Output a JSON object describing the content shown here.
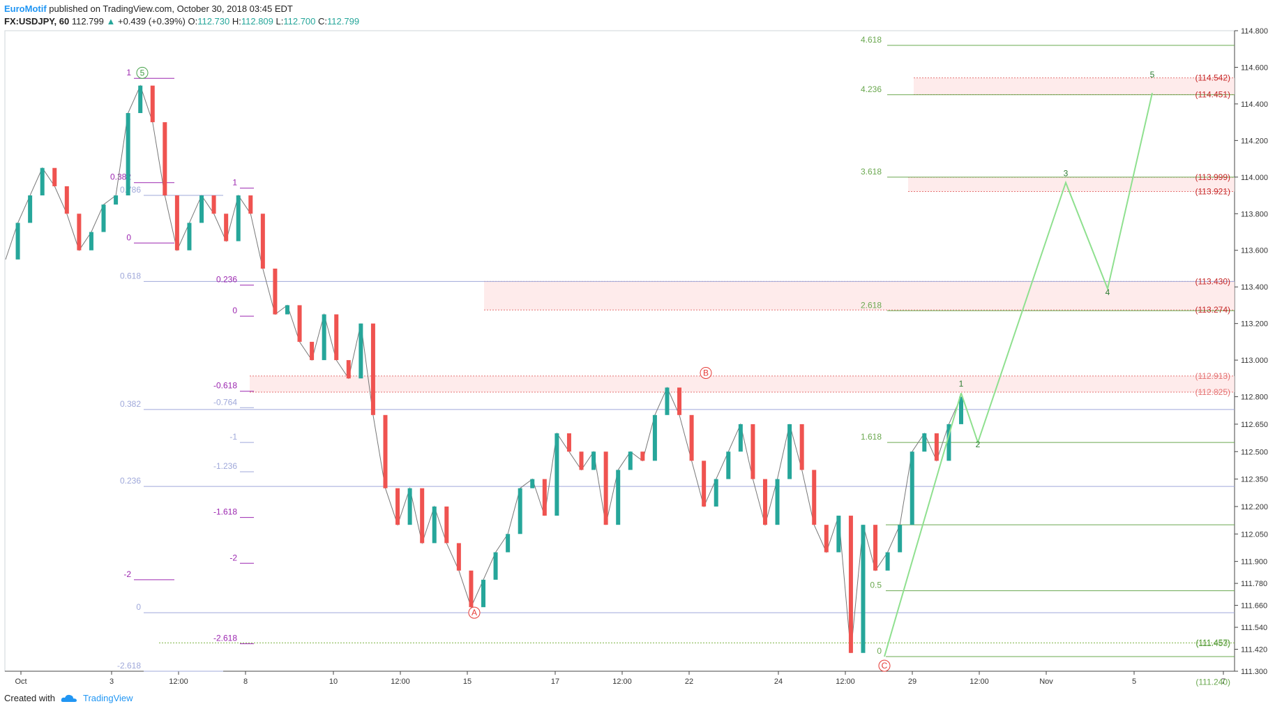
{
  "header": {
    "author": "EuroMotif",
    "published": "published on TradingView.com, October 30, 2018 03:45 EDT",
    "symbol": "FX:USDJPY, 60",
    "last": "112.799",
    "change_arrow": "▲",
    "change": "+0.439 (+0.39%)",
    "open_label": "O:",
    "open": "112.730",
    "high_label": "H:",
    "high": "112.809",
    "low_label": "L:",
    "low": "112.700",
    "close_label": "C:",
    "close": "112.799"
  },
  "footer": {
    "created_with": "Created with",
    "brand": "TradingView",
    "brand_icon": "cloud-logo-icon"
  },
  "colors": {
    "bull": "#26a69a",
    "bear": "#ef5350",
    "fib_green": "#6aa84f",
    "fib_purple": "#9c27b0",
    "fib_grey": "#9fa8da",
    "zone_red": "#fde4e4",
    "label_red": "#c62828",
    "projection": "#8fe08f"
  },
  "chart_data": {
    "type": "line",
    "title": "",
    "xlabel": "",
    "ylabel": "",
    "ylim": [
      111.3,
      114.8
    ],
    "grid": false,
    "y_ticks": [
      "114.800",
      "114.600",
      "114.400",
      "114.200",
      "114.000",
      "113.800",
      "113.600",
      "113.400",
      "113.200",
      "113.000",
      "112.800",
      "112.650",
      "112.500",
      "112.350",
      "112.200",
      "112.050",
      "111.900",
      "111.780",
      "111.660",
      "111.540",
      "111.420",
      "111.300"
    ],
    "x_ticks": [
      "Oct",
      "3",
      "12:00",
      "8",
      "10",
      "12:00",
      "15",
      "17",
      "12:00",
      "22",
      "24",
      "12:00",
      "29",
      "12:00",
      "Nov",
      "5",
      "7"
    ],
    "series": [
      {
        "values": [
          113.55,
          113.75,
          113.9,
          114.05,
          113.95,
          113.8,
          113.6,
          113.7,
          113.85,
          113.9,
          114.35,
          114.5,
          114.3,
          113.9,
          113.6,
          113.75,
          113.9,
          113.8,
          113.65,
          113.9,
          113.8,
          113.5,
          113.25,
          113.3,
          113.1,
          113.0,
          113.25,
          113.0,
          112.9,
          113.2,
          112.7,
          112.3,
          112.1,
          112.3,
          112.0,
          112.2,
          112.0,
          111.85,
          111.65,
          111.8,
          111.95,
          112.05,
          112.3,
          112.35,
          112.15,
          112.6,
          112.5,
          112.4,
          112.5,
          112.1,
          112.4,
          112.5,
          112.45,
          112.7,
          112.85,
          112.7,
          112.45,
          112.2,
          112.35,
          112.5,
          112.65,
          112.35,
          112.1,
          112.35,
          112.65,
          112.4,
          112.1,
          111.95,
          112.15,
          111.4,
          112.1,
          111.85,
          111.95,
          112.1,
          112.5,
          112.6,
          112.45,
          112.65,
          112.8
        ]
      }
    ],
    "wave_labels": [
      {
        "text": "5",
        "date": "Oct 3",
        "price": 114.57
      },
      {
        "text": "A",
        "date": "Oct 15",
        "price": 111.62
      },
      {
        "text": "B",
        "date": "Oct 22",
        "price": 112.93
      },
      {
        "text": "C",
        "date": "Oct 26",
        "price": 111.33
      },
      {
        "text": "1",
        "date": "Oct 30",
        "price": 112.87
      },
      {
        "text": "2",
        "date": "Oct 31",
        "price": 112.54
      },
      {
        "text": "3",
        "date": "Nov 4",
        "price": 114.02
      },
      {
        "text": "4",
        "date": "Nov 4",
        "price": 113.37
      },
      {
        "text": "5",
        "date": "Nov 5",
        "price": 114.56
      }
    ],
    "projection": [
      {
        "date": "Oct 30",
        "price": 112.82
      },
      {
        "date": "Oct 31",
        "price": 112.55
      },
      {
        "date": "Nov 4",
        "price": 113.97
      },
      {
        "date": "Nov 4",
        "price": 113.39
      },
      {
        "date": "Nov 5",
        "price": 114.46
      }
    ],
    "fib_extension_levels": [
      {
        "label": "4.618",
        "price": 114.72
      },
      {
        "label": "4.236",
        "price": 114.45
      },
      {
        "label": "3.618",
        "price": 114.0
      },
      {
        "label": "2.618",
        "price": 113.27
      },
      {
        "label": "1.618",
        "price": 112.55
      },
      {
        "label": "0.5",
        "price": 111.74
      },
      {
        "label": "0",
        "price": 111.38
      }
    ],
    "price_levels": [
      {
        "label": "(114.542)",
        "price": 114.542
      },
      {
        "label": "(114.451)",
        "price": 114.451
      },
      {
        "label": "(113.999)",
        "price": 113.999
      },
      {
        "label": "(113.921)",
        "price": 113.921
      },
      {
        "label": "(113.430)",
        "price": 113.43
      },
      {
        "label": "(113.274)",
        "price": 113.274
      },
      {
        "label": "(112.913)",
        "price": 112.913
      },
      {
        "label": "(112.825)",
        "price": 112.825
      },
      {
        "label": "(111.457)",
        "price": 111.457
      },
      {
        "label": "(111.453)",
        "price": 111.453
      },
      {
        "label": "(111.240)",
        "price": 111.24
      }
    ],
    "fib_retracement_left": [
      {
        "label": "1",
        "price": 114.54
      },
      {
        "label": "0.382",
        "price": 113.97
      },
      {
        "label": "0",
        "price": 113.64
      },
      {
        "label": "0.786",
        "price": 113.9
      },
      {
        "label": "0.618",
        "price": 113.43
      },
      {
        "label": "0.382",
        "price": 112.73
      },
      {
        "label": "0.236",
        "price": 112.31
      },
      {
        "label": "0",
        "price": 111.62
      },
      {
        "label": "-2",
        "price": 111.8
      },
      {
        "label": "-2.618",
        "price": 111.3
      }
    ],
    "fib_retracement_mid": [
      {
        "label": "1",
        "price": 113.94
      },
      {
        "label": "0.236",
        "price": 113.41
      },
      {
        "label": "0",
        "price": 113.24
      },
      {
        "label": "-0.618",
        "price": 112.83
      },
      {
        "label": "-0.764",
        "price": 112.74
      },
      {
        "label": "-1",
        "price": 112.55
      },
      {
        "label": "-1.236",
        "price": 112.39
      },
      {
        "label": "-1.618",
        "price": 112.14
      },
      {
        "label": "-2",
        "price": 111.89
      },
      {
        "label": "-2.618",
        "price": 111.45
      }
    ]
  }
}
